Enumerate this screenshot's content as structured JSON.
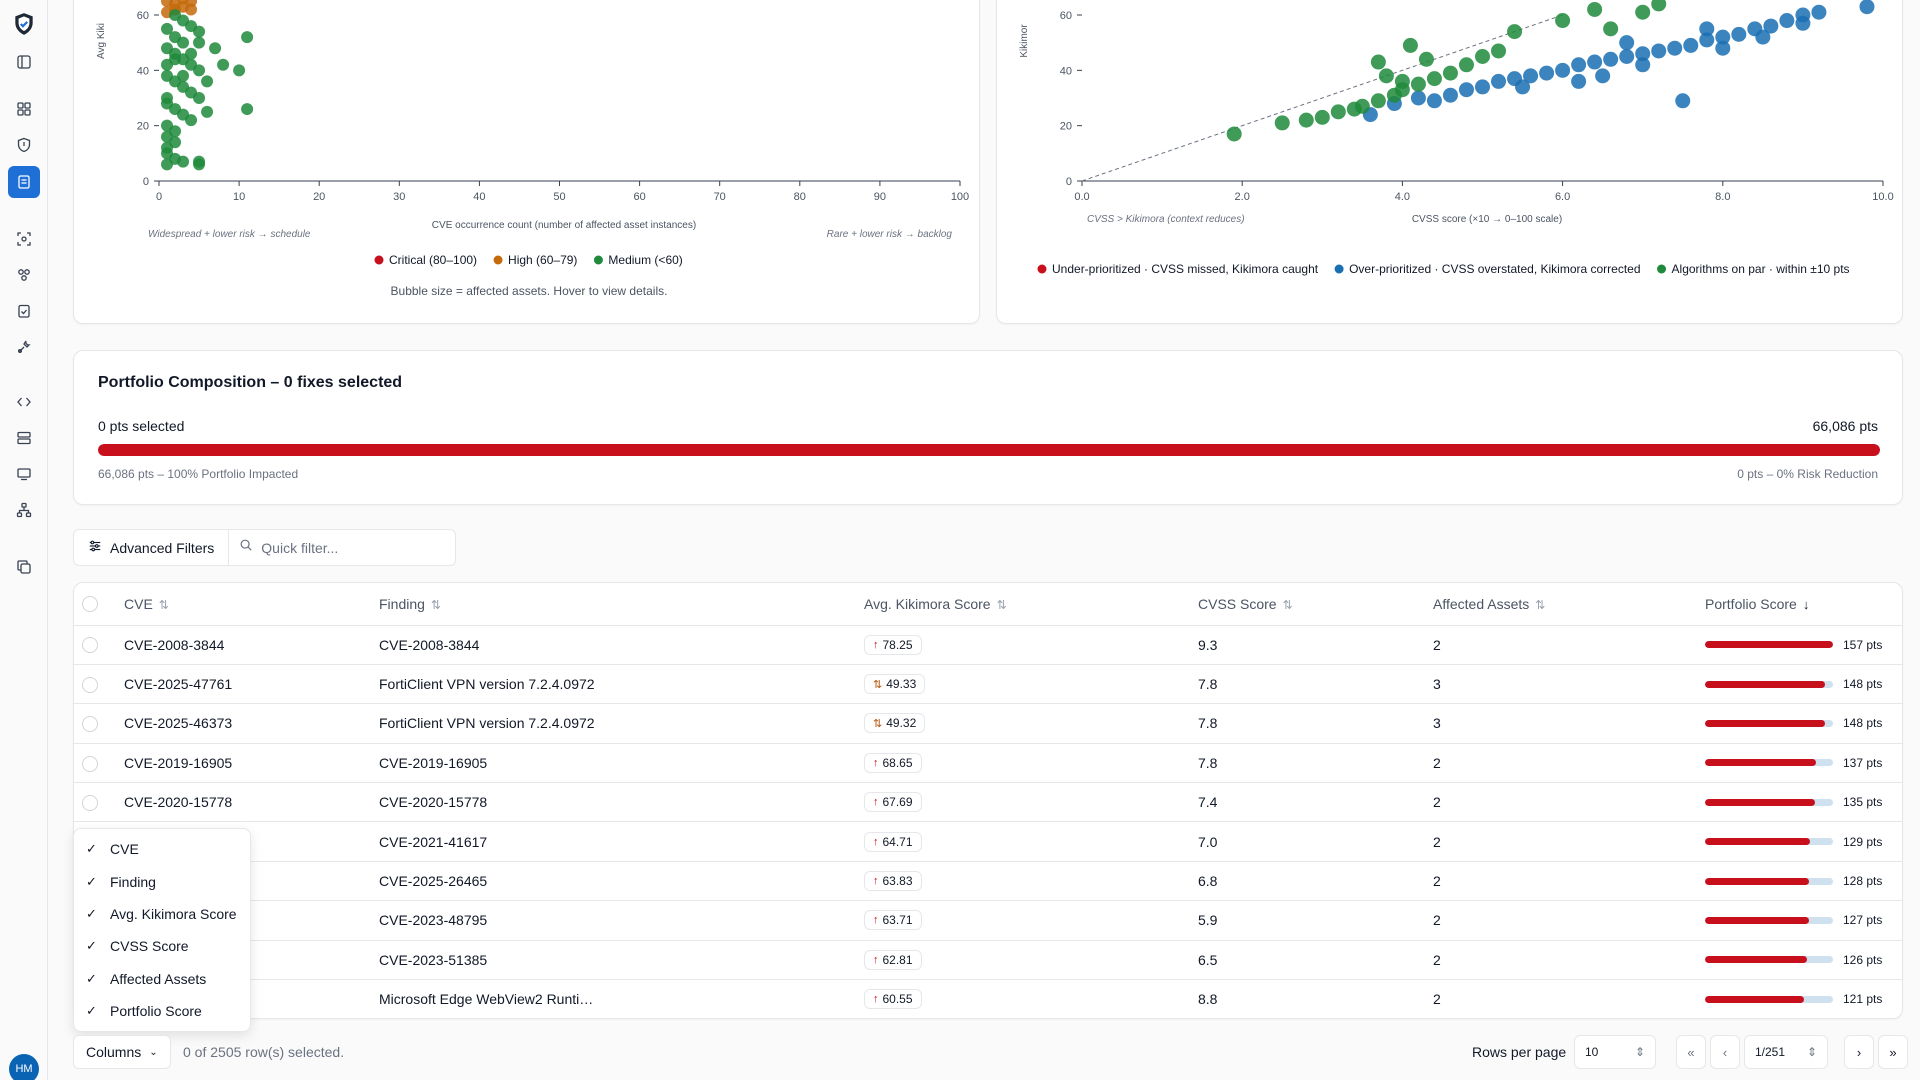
{
  "sidebar": {
    "avatar_initials": "HM",
    "icons": [
      "brand-shield-icon",
      "panel-toggle-icon",
      "dashboard-icon",
      "shield-icon",
      "reports-icon",
      "scan-icon",
      "group-icon",
      "clipboard-check-icon",
      "tools-icon",
      "code-icon",
      "server-icon",
      "monitor-icon",
      "network-icon",
      "copy-icon"
    ],
    "accent": "#1e6fd6"
  },
  "chart_left": {
    "chart_data": {
      "type": "scatter",
      "title": "",
      "xlabel": "CVE occurrence count (number of affected asset instances)",
      "ylabel": "Avg Kiki",
      "xlim": [
        0,
        100
      ],
      "ylim": [
        0,
        60
      ],
      "x_ticks": [
        "0",
        "10",
        "20",
        "30",
        "40",
        "50",
        "60",
        "70",
        "80",
        "90",
        "100"
      ],
      "y_ticks": [
        "0",
        "20",
        "40",
        "60"
      ],
      "notes": {
        "left": "Widespread + lower risk → schedule",
        "right": "Rare + lower risk → backlog"
      },
      "legend": [
        "Critical (80–100)",
        "High (60–79)",
        "Medium (<60)"
      ],
      "legend_colors": [
        "#c8101d",
        "#c46a0c",
        "#1f8a3b"
      ],
      "caption": "Bubble size = affected assets. Hover to view details.",
      "series": [
        {
          "name": "High (60–79)",
          "color": "#c46a0c",
          "points": [
            [
              1,
              65
            ],
            [
              2,
              64
            ],
            [
              3,
              66
            ],
            [
              4,
              65
            ],
            [
              2,
              62
            ],
            [
              3,
              63
            ],
            [
              1,
              61
            ],
            [
              4,
              62
            ]
          ]
        },
        {
          "name": "Medium (<60)",
          "color": "#1f8a3b",
          "points": [
            [
              1,
              55
            ],
            [
              2,
              52
            ],
            [
              3,
              50
            ],
            [
              1,
              48
            ],
            [
              2,
              46
            ],
            [
              3,
              44
            ],
            [
              4,
              42
            ],
            [
              5,
              40
            ],
            [
              1,
              38
            ],
            [
              2,
              36
            ],
            [
              3,
              34
            ],
            [
              4,
              32
            ],
            [
              5,
              30
            ],
            [
              1,
              28
            ],
            [
              2,
              26
            ],
            [
              3,
              24
            ],
            [
              4,
              22
            ],
            [
              1,
              20
            ],
            [
              2,
              18
            ],
            [
              1,
              16
            ],
            [
              2,
              14
            ],
            [
              1,
              12
            ],
            [
              1,
              10
            ],
            [
              2,
              8
            ],
            [
              3,
              7
            ],
            [
              5,
              6
            ],
            [
              5,
              7
            ],
            [
              1,
              6
            ],
            [
              11,
              52
            ],
            [
              10,
              40
            ],
            [
              8,
              42
            ],
            [
              11,
              26
            ],
            [
              6,
              25
            ],
            [
              7,
              48
            ],
            [
              1,
              42
            ],
            [
              3,
              58
            ],
            [
              2,
              60
            ],
            [
              4,
              56
            ],
            [
              5,
              54
            ],
            [
              6,
              36
            ],
            [
              1,
              30
            ],
            [
              2,
              44
            ],
            [
              3,
              38
            ],
            [
              4,
              46
            ],
            [
              5,
              50
            ]
          ]
        }
      ]
    }
  },
  "chart_right": {
    "chart_data": {
      "type": "scatter",
      "title": "",
      "xlabel": "CVSS score (×10 → 0–100 scale)",
      "ylabel": "Kikimor",
      "xlim": [
        0,
        10
      ],
      "ylim": [
        0,
        60
      ],
      "x_ticks": [
        "0.0",
        "2.0",
        "4.0",
        "6.0",
        "8.0",
        "10.0"
      ],
      "y_ticks": [
        "0",
        "20",
        "40",
        "60"
      ],
      "notes": {
        "left": "CVSS > Kikimora (context reduces)"
      },
      "legend": [
        "Under-prioritized · CVSS missed, Kikimora caught",
        "Over-prioritized · CVSS overstated, Kikimora corrected",
        "Algorithms on par · within ±10 pts"
      ],
      "legend_colors": [
        "#c8101d",
        "#1a6fb3",
        "#1f8a3b"
      ],
      "series": [
        {
          "name": "Over-prioritized · CVSS overstated, Kikimora corrected",
          "color": "#1a6fb3",
          "points": [
            [
              3.6,
              24
            ],
            [
              3.9,
              28
            ],
            [
              4.2,
              30
            ],
            [
              4.4,
              29
            ],
            [
              4.6,
              31
            ],
            [
              4.8,
              33
            ],
            [
              5.0,
              34
            ],
            [
              5.2,
              36
            ],
            [
              5.4,
              37
            ],
            [
              5.6,
              38
            ],
            [
              5.8,
              39
            ],
            [
              6.0,
              40
            ],
            [
              6.2,
              42
            ],
            [
              6.4,
              43
            ],
            [
              6.6,
              44
            ],
            [
              6.8,
              45
            ],
            [
              7.0,
              46
            ],
            [
              7.2,
              47
            ],
            [
              7.4,
              48
            ],
            [
              7.6,
              49
            ],
            [
              7.8,
              51
            ],
            [
              8.0,
              52
            ],
            [
              8.2,
              53
            ],
            [
              8.4,
              55
            ],
            [
              8.6,
              56
            ],
            [
              8.8,
              58
            ],
            [
              9.0,
              60
            ],
            [
              9.2,
              61
            ],
            [
              7.5,
              29
            ],
            [
              6.5,
              38
            ],
            [
              7.0,
              42
            ],
            [
              8.0,
              48
            ],
            [
              6.8,
              50
            ],
            [
              7.8,
              55
            ],
            [
              9.0,
              57
            ],
            [
              5.5,
              34
            ],
            [
              6.2,
              36
            ],
            [
              8.5,
              52
            ],
            [
              9.8,
              63
            ]
          ]
        },
        {
          "name": "Algorithms on par · within ±10 pts",
          "color": "#1f8a3b",
          "points": [
            [
              1.9,
              17
            ],
            [
              2.5,
              21
            ],
            [
              2.8,
              22
            ],
            [
              3.0,
              23
            ],
            [
              3.2,
              25
            ],
            [
              3.4,
              26
            ],
            [
              3.5,
              27
            ],
            [
              3.7,
              29
            ],
            [
              3.9,
              31
            ],
            [
              4.0,
              33
            ],
            [
              4.2,
              35
            ],
            [
              4.4,
              37
            ],
            [
              4.6,
              39
            ],
            [
              3.7,
              43
            ],
            [
              4.3,
              44
            ],
            [
              4.1,
              49
            ],
            [
              5.4,
              54
            ],
            [
              5.0,
              45
            ],
            [
              6.0,
              58
            ],
            [
              6.4,
              62
            ],
            [
              7.0,
              61
            ],
            [
              3.8,
              38
            ],
            [
              4.0,
              36
            ],
            [
              4.8,
              42
            ],
            [
              5.2,
              47
            ],
            [
              6.6,
              55
            ],
            [
              7.2,
              64
            ]
          ]
        }
      ]
    }
  },
  "portfolio": {
    "title": "Portfolio Composition – 0 fixes selected",
    "selected_pts": "0 pts selected",
    "total_pts": "66,086 pts",
    "impacted_note": "66,086 pts – 100% Portfolio Impacted",
    "reduction_note": "0 pts – 0% Risk Reduction",
    "impacted_fraction": 1.0,
    "bar_color": "#c8101d"
  },
  "filters": {
    "advanced_label": "Advanced Filters",
    "quick_placeholder": "Quick filter..."
  },
  "table": {
    "columns": [
      "CVE",
      "Finding",
      "Avg. Kikimora Score",
      "CVSS Score",
      "Affected Assets",
      "Portfolio Score"
    ],
    "rows": [
      {
        "cve": "CVE-2008-3844",
        "finding": "CVE-2008-3844",
        "kiki": "78.25",
        "trend": "up",
        "cvss": "9.3",
        "assets": "2",
        "pts": "157 pts",
        "frac": 1.0
      },
      {
        "cve": "CVE-2025-47761",
        "finding": "FortiClient VPN version 7.2.4.0972",
        "kiki": "49.33",
        "trend": "mixed",
        "cvss": "7.8",
        "assets": "3",
        "pts": "148 pts",
        "frac": 0.94
      },
      {
        "cve": "CVE-2025-46373",
        "finding": "FortiClient VPN version 7.2.4.0972",
        "kiki": "49.32",
        "trend": "mixed",
        "cvss": "7.8",
        "assets": "3",
        "pts": "148 pts",
        "frac": 0.94
      },
      {
        "cve": "CVE-2019-16905",
        "finding": "CVE-2019-16905",
        "kiki": "68.65",
        "trend": "up",
        "cvss": "7.8",
        "assets": "2",
        "pts": "137 pts",
        "frac": 0.87
      },
      {
        "cve": "CVE-2020-15778",
        "finding": "CVE-2020-15778",
        "kiki": "67.69",
        "trend": "up",
        "cvss": "7.4",
        "assets": "2",
        "pts": "135 pts",
        "frac": 0.86
      },
      {
        "cve": "CVE-2021-41617",
        "finding": "CVE-2021-41617",
        "kiki": "64.71",
        "trend": "up",
        "cvss": "7.0",
        "assets": "2",
        "pts": "129 pts",
        "frac": 0.82
      },
      {
        "cve": "CVE-2025-26465",
        "finding": "CVE-2025-26465",
        "kiki": "63.83",
        "trend": "up",
        "cvss": "6.8",
        "assets": "2",
        "pts": "128 pts",
        "frac": 0.815
      },
      {
        "cve": "CVE-2023-48795",
        "finding": "CVE-2023-48795",
        "kiki": "63.71",
        "trend": "up",
        "cvss": "5.9",
        "assets": "2",
        "pts": "127 pts",
        "frac": 0.81
      },
      {
        "cve": "CVE-2023-51385",
        "finding": "CVE-2023-51385",
        "kiki": "62.81",
        "trend": "up",
        "cvss": "6.5",
        "assets": "2",
        "pts": "126 pts",
        "frac": 0.8
      },
      {
        "cve": "",
        "finding": "Microsoft Edge WebView2 Runti…",
        "kiki": "60.55",
        "trend": "up",
        "cvss": "8.8",
        "assets": "2",
        "pts": "121 pts",
        "frac": 0.77
      }
    ]
  },
  "column_menu": {
    "items": [
      "CVE",
      "Finding",
      "Avg. Kikimora Score",
      "CVSS Score",
      "Affected Assets",
      "Portfolio Score"
    ]
  },
  "footer": {
    "columns_label": "Columns",
    "selection": "0 of 2505 row(s) selected.",
    "rows_per_page_label": "Rows per page",
    "rows_per_page": "10",
    "page": "1/251"
  }
}
